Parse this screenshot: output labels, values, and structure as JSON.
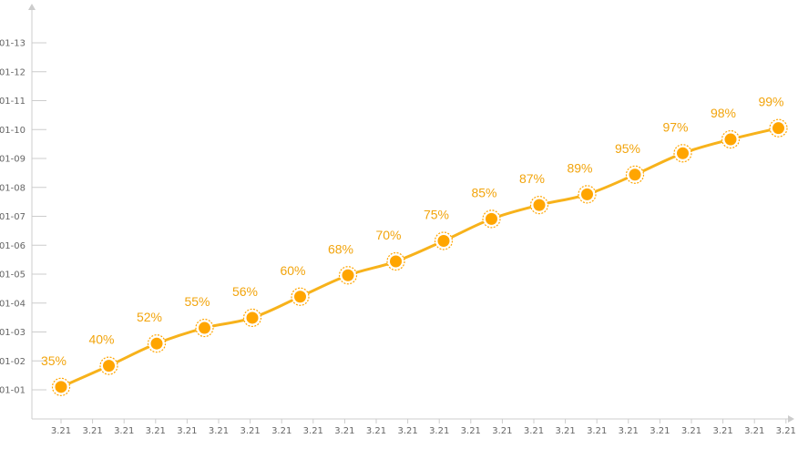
{
  "chart_data": {
    "type": "line",
    "title": "",
    "xlabel": "",
    "ylabel": "",
    "x_tick_labels": [
      "3.21",
      "3.21",
      "3.21",
      "3.21",
      "3.21",
      "3.21",
      "3.21",
      "3.21",
      "3.21",
      "3.21",
      "3.21",
      "3.21",
      "3.21",
      "3.21",
      "3.21",
      "3.21",
      "3.21",
      "3.21",
      "3.21",
      "3.21",
      "3.21",
      "3.21",
      "3.21",
      "3.21"
    ],
    "y_tick_labels": [
      "01-01",
      "01-02",
      "01-03",
      "01-04",
      "01-05",
      "01-06",
      "01-07",
      "01-08",
      "01-09",
      "01-10",
      "01-11",
      "01-12",
      "01-13"
    ],
    "ylim": [
      1,
      13
    ],
    "grid": false,
    "smooth": true,
    "series": [
      {
        "values": [
          1.1,
          1.83,
          2.6,
          3.14,
          3.49,
          4.22,
          4.96,
          5.44,
          6.15,
          6.91,
          7.39,
          7.76,
          8.44,
          9.18,
          9.66,
          10.05
        ],
        "labels": [
          "35%",
          "40%",
          "52%",
          "55%",
          "56%",
          "60%",
          "68%",
          "70%",
          "75%",
          "85%",
          "87%",
          "89%",
          "95%",
          "97%",
          "98%",
          "99%"
        ]
      }
    ],
    "colors": {
      "line": "#f7b21b",
      "point": "#ffa500",
      "label": "#f2a40c",
      "axis": "#cccccc",
      "tick_text": "#666666"
    }
  }
}
